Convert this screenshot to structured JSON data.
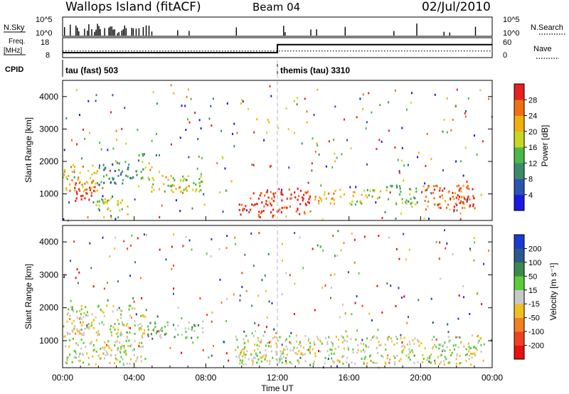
{
  "header": {
    "station": "Wallops Island (fitACF)",
    "beam": "Beam 04",
    "date": "02/Jul/2010"
  },
  "labels": {
    "nsky": "N.Sky",
    "nsearch": "N.Search",
    "freq_line1": "Freq.",
    "freq_line2": "[MHz]",
    "nave": "Nave",
    "cpid": "CPID",
    "nsky_tick_top": "10^5",
    "nsky_tick_bottom": "10^0",
    "freq_tick_top": "18",
    "freq_tick_bottom": "8",
    "nave_tick_top": "60",
    "nave_tick_bottom": "0"
  },
  "colors": {
    "power_scale": [
      "#1a1ae0",
      "#2a55b0",
      "#3d8a6a",
      "#4ab84a",
      "#c8d820",
      "#f0b010",
      "#f07010",
      "#e82020"
    ],
    "velocity_scale": [
      "#1a3ad0",
      "#2a5a90",
      "#3a8a50",
      "#5acc3a",
      "#c8c8c8",
      "#f0c020",
      "#f08020",
      "#f04020",
      "#e81010"
    ]
  },
  "chart_data": [
    {
      "type": "line",
      "name": "status-panel",
      "cpid_segments": [
        {
          "label": "tau (fast) 503",
          "start": 0.0,
          "end": 12.0
        },
        {
          "label": "themis (tau) 3310",
          "start": 12.0,
          "end": 24.0
        }
      ],
      "frequency": {
        "ylim": [
          8,
          18
        ],
        "x": [
          0,
          12,
          12,
          24
        ],
        "y": [
          10.5,
          10.5,
          14.5,
          14.5
        ]
      },
      "nave": {
        "ylim": [
          0,
          60
        ],
        "x": [
          0,
          24
        ],
        "y": [
          20,
          20
        ]
      }
    },
    {
      "type": "heatmap",
      "name": "power",
      "ylabel": "Slant Range [km]",
      "xlim": [
        0,
        24
      ],
      "ylim": [
        180,
        4500
      ],
      "yticks": [
        1000,
        2000,
        3000,
        4000
      ],
      "colorbar": {
        "label": "Power [dB]",
        "ticks": [
          "4",
          "8",
          "12",
          "16",
          "20",
          "24",
          "28"
        ],
        "range": [
          0,
          32
        ]
      },
      "regions": [
        {
          "t0": 0.0,
          "t1": 2.0,
          "r0": 1100,
          "r1": 1950,
          "level": 5
        },
        {
          "t0": 0.5,
          "t1": 1.8,
          "r0": 800,
          "r1": 1400,
          "level": 7
        },
        {
          "t0": 1.8,
          "t1": 3.6,
          "r0": 300,
          "r1": 900,
          "level": 4
        },
        {
          "t0": 2.0,
          "t1": 4.0,
          "r0": 1300,
          "r1": 2000,
          "level": 2
        },
        {
          "t0": 4.0,
          "t1": 4.6,
          "r0": 1500,
          "r1": 2300,
          "level": 3
        },
        {
          "t0": 4.6,
          "t1": 7.8,
          "r0": 1100,
          "r1": 1600,
          "level": 4
        },
        {
          "t0": 6.0,
          "t1": 7.8,
          "r0": 1050,
          "r1": 1300,
          "level": 5
        },
        {
          "t0": 9.8,
          "t1": 12.0,
          "r0": 300,
          "r1": 1100,
          "level": 7
        },
        {
          "t0": 12.0,
          "t1": 14.0,
          "r0": 400,
          "r1": 1200,
          "level": 7
        },
        {
          "t0": 14.0,
          "t1": 15.5,
          "r0": 700,
          "r1": 1150,
          "level": 5
        },
        {
          "t0": 16.0,
          "t1": 17.8,
          "r0": 700,
          "r1": 1150,
          "level": 4
        },
        {
          "t0": 18.0,
          "t1": 19.8,
          "r0": 700,
          "r1": 1300,
          "level": 3
        },
        {
          "t0": 20.0,
          "t1": 23.0,
          "r0": 500,
          "r1": 1300,
          "level": 6
        },
        {
          "t0": 21.5,
          "t1": 22.8,
          "r0": 600,
          "r1": 1000,
          "level": 7
        }
      ]
    },
    {
      "type": "heatmap",
      "name": "velocity",
      "ylabel": "Slant Range [km]",
      "xlabel": "Time UT",
      "xlim": [
        0,
        24
      ],
      "ylim": [
        180,
        4500
      ],
      "yticks": [
        1000,
        2000,
        3000,
        4000
      ],
      "xticks": [
        "00:00",
        "04:00",
        "08:00",
        "12:00",
        "16:00",
        "20:00",
        "00:00"
      ],
      "colorbar": {
        "label": "Velocity [m s⁻¹]",
        "ticks": [
          "200",
          "100",
          "50",
          "15",
          "-15",
          "-50",
          "-100",
          "-200"
        ]
      },
      "regions": [
        {
          "t0": 0.0,
          "t1": 4.6,
          "r0": 300,
          "r1": 2100,
          "level": 4
        },
        {
          "t0": 0.2,
          "t1": 1.2,
          "r0": 1200,
          "r1": 1800,
          "level": 5
        },
        {
          "t0": 4.7,
          "t1": 7.8,
          "r0": 1100,
          "r1": 1650,
          "level": 3
        },
        {
          "t0": 9.6,
          "t1": 23.5,
          "r0": 300,
          "r1": 1200,
          "level": 4
        },
        {
          "t0": 10.5,
          "t1": 12.5,
          "r0": 300,
          "r1": 700,
          "level": 4
        }
      ]
    }
  ]
}
